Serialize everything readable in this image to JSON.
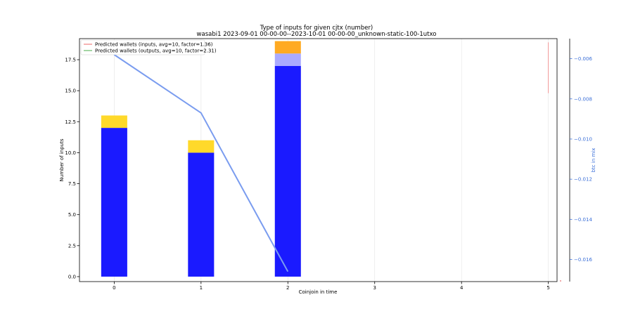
{
  "chart_data": {
    "type": "bar",
    "title": "Type of inputs for given cjtx (number)",
    "subtitle": "wasabi1 2023-09-01 00-00-00--2023-10-01 00-00-00_unknown-static-100-1utxo",
    "xlabel": "Coinjoin in time",
    "ylabel": "Number of inputs",
    "y2label": "btc in mix",
    "xlim": [
      -0.4,
      5.1
    ],
    "ylim": [
      -0.4,
      19.2
    ],
    "y2lim": [
      -0.0171,
      -0.005
    ],
    "x_ticks": [
      "0",
      "1",
      "2",
      "3",
      "4",
      "5"
    ],
    "y_ticks": [
      "0.0",
      "2.5",
      "5.0",
      "7.5",
      "10.0",
      "12.5",
      "15.0",
      "17.5"
    ],
    "y2_ticks": [
      "−0.016",
      "−0.014",
      "−0.012",
      "−0.010",
      "−0.008",
      "−0.006"
    ],
    "categories": [
      0,
      1,
      2
    ],
    "stacks": [
      {
        "color": "#1a1aff",
        "values": [
          12,
          10,
          17
        ]
      },
      {
        "color": "#ffd92a",
        "values": [
          1,
          1,
          0
        ]
      },
      {
        "color": "#aaaaff",
        "values": [
          0,
          0,
          1
        ]
      },
      {
        "color": "#ffaa22",
        "values": [
          0,
          0,
          1
        ]
      }
    ],
    "line_series": {
      "axis": "right",
      "color": "#7a9cef",
      "x": [
        0,
        1,
        2
      ],
      "y": [
        -0.0058,
        -0.0087,
        -0.0166
      ]
    },
    "legend": {
      "placement": "top-left",
      "entries": [
        {
          "label": "Predicted wallets (inputs, avg=10, factor=1.36)",
          "color": "#f08080"
        },
        {
          "label": "Predicted wallets (outputs, avg=10, factor=2.31)",
          "color": "#66bb66"
        }
      ]
    },
    "grid_x": true
  }
}
